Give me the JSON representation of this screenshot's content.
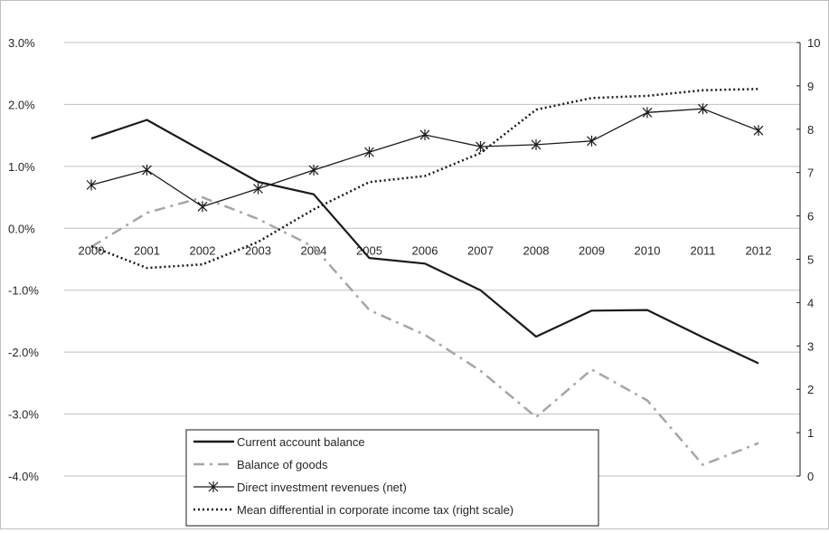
{
  "chart_data": {
    "type": "line",
    "categories": [
      "2000",
      "2001",
      "2002",
      "2003",
      "2004",
      "2005",
      "2006",
      "2007",
      "2008",
      "2009",
      "2010",
      "2011",
      "2012"
    ],
    "left_axis": {
      "ylim": [
        -4.0,
        3.0
      ],
      "ticks": [
        3.0,
        2.0,
        1.0,
        0.0,
        -1.0,
        -2.0,
        -3.0,
        -4.0
      ],
      "tick_labels": [
        "3.0%",
        "2.0%",
        "1.0%",
        "0.0%",
        "-1.0%",
        "-2.0%",
        "-3.0%",
        "-4.0%"
      ]
    },
    "right_axis": {
      "ylim": [
        0,
        10
      ],
      "ticks": [
        10,
        9,
        8,
        7,
        6,
        5,
        4,
        3,
        2,
        1,
        0
      ],
      "tick_labels": [
        "10",
        "9",
        "8",
        "7",
        "6",
        "5",
        "4",
        "3",
        "2",
        "1",
        "0"
      ]
    },
    "grid": "horizontal",
    "legend_position": "bottom-center",
    "series": [
      {
        "name": "Current account balance",
        "axis": "left",
        "style": "solid",
        "color": "#1a1a1a",
        "values": [
          1.45,
          1.75,
          1.25,
          0.75,
          0.55,
          -0.48,
          -0.57,
          -1.0,
          -1.75,
          -1.33,
          -1.32,
          -1.76,
          -2.18
        ]
      },
      {
        "name": "Balance of goods",
        "axis": "left",
        "style": "dash-dot",
        "color": "#a6a6a6",
        "values": [
          -0.3,
          0.25,
          0.5,
          0.15,
          -0.3,
          -1.32,
          -1.72,
          -2.3,
          -3.05,
          -2.28,
          -2.78,
          -3.82,
          -3.47
        ]
      },
      {
        "name": "Direct investment revenues (net)",
        "axis": "left",
        "style": "solid-star",
        "color": "#1a1a1a",
        "values": [
          0.7,
          0.94,
          0.35,
          0.64,
          0.94,
          1.23,
          1.51,
          1.32,
          1.35,
          1.41,
          1.87,
          1.93,
          1.58
        ]
      },
      {
        "name": "Mean differential in corporate income tax (right scale)",
        "axis": "right",
        "style": "dotted",
        "color": "#1a1a1a",
        "values": [
          5.3,
          4.8,
          4.88,
          5.4,
          6.15,
          6.78,
          6.92,
          7.45,
          8.45,
          8.72,
          8.77,
          8.9,
          8.93
        ]
      }
    ]
  }
}
